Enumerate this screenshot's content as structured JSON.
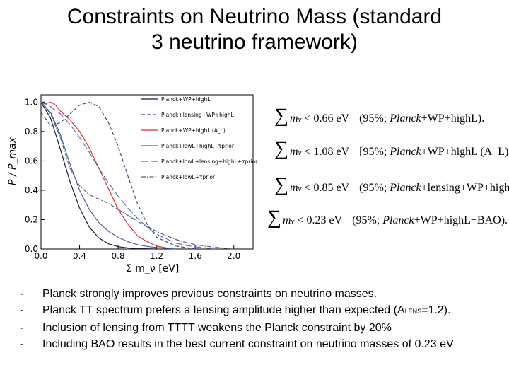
{
  "slide": {
    "title_line1": "Constraints on Neutrino Mass (standard",
    "title_line2": "3 neutrino framework)"
  },
  "chart_data": {
    "type": "line",
    "title": "",
    "xlabel": "Σ m_ν [eV]",
    "ylabel": "P / P_max",
    "xlim": [
      0.0,
      2.2
    ],
    "ylim": [
      0.0,
      1.05
    ],
    "x_ticks": [
      "0.0",
      "0.4",
      "0.8",
      "1.2",
      "1.6",
      "2.0"
    ],
    "y_ticks": [
      "0.0",
      "0.2",
      "0.4",
      "0.6",
      "0.8",
      "1.0"
    ],
    "legend_position": "top-right",
    "series": [
      {
        "name": "Planck+WP+highL",
        "color": "#1a1a3a",
        "dash": "solid",
        "x": [
          0,
          0.1,
          0.2,
          0.3,
          0.4,
          0.5,
          0.6,
          0.7,
          0.8,
          0.9,
          1.0,
          1.2
        ],
        "y": [
          1.0,
          0.89,
          0.68,
          0.46,
          0.28,
          0.15,
          0.075,
          0.035,
          0.016,
          0.007,
          0.003,
          0.0
        ]
      },
      {
        "name": "Planck+lensing+WP+highL",
        "color": "#3a4a7a",
        "dash": "dashed",
        "x": [
          0,
          0.1,
          0.2,
          0.3,
          0.4,
          0.5,
          0.6,
          0.7,
          0.8,
          0.9,
          1.0,
          1.1,
          1.2,
          1.4,
          1.6
        ],
        "y": [
          0.93,
          0.84,
          0.86,
          0.92,
          0.98,
          1.0,
          0.97,
          0.86,
          0.7,
          0.5,
          0.31,
          0.17,
          0.08,
          0.02,
          0.0
        ]
      },
      {
        "name": "Planck+WP+highL (A_L)",
        "color": "#d9342b",
        "dash": "solid",
        "x": [
          0,
          0.05,
          0.1,
          0.15,
          0.2,
          0.3,
          0.4,
          0.5,
          0.6,
          0.7,
          0.8,
          0.9,
          1.0,
          1.1,
          1.2,
          1.3,
          1.4
        ],
        "y": [
          1.0,
          0.99,
          1.0,
          0.98,
          0.94,
          0.88,
          0.8,
          0.69,
          0.55,
          0.41,
          0.27,
          0.17,
          0.09,
          0.05,
          0.02,
          0.008,
          0.0
        ]
      },
      {
        "name": "Planck+lowL+highL+τprior",
        "color": "#4a5fa8",
        "dash": "solid",
        "x": [
          0,
          0.1,
          0.2,
          0.3,
          0.4,
          0.5,
          0.6,
          0.7,
          0.8,
          0.9,
          1.0,
          1.1,
          1.2,
          1.3,
          1.4
        ],
        "y": [
          1.0,
          0.93,
          0.78,
          0.58,
          0.4,
          0.27,
          0.18,
          0.12,
          0.08,
          0.05,
          0.03,
          0.018,
          0.01,
          0.005,
          0.0
        ]
      },
      {
        "name": "Planck+lowL+lensing+highL+τprior",
        "color": "#5a6fb8",
        "dash": "longdash",
        "x": [
          0,
          0.1,
          0.2,
          0.3,
          0.4,
          0.5,
          0.6,
          0.7,
          0.8,
          0.9,
          1.0,
          1.1,
          1.2,
          1.3,
          1.4,
          1.5,
          1.6,
          1.7,
          1.8
        ],
        "y": [
          1.0,
          0.97,
          0.92,
          0.85,
          0.76,
          0.66,
          0.55,
          0.45,
          0.36,
          0.28,
          0.21,
          0.15,
          0.1,
          0.07,
          0.04,
          0.025,
          0.015,
          0.008,
          0.0
        ]
      },
      {
        "name": "Planck+lowL+τprior",
        "color": "#5a5a7a",
        "dash": "dashdot",
        "x": [
          0,
          0.1,
          0.2,
          0.3,
          0.4,
          0.5,
          0.6,
          0.7,
          0.8,
          0.9,
          1.0,
          1.1,
          1.2,
          1.3,
          1.4,
          1.5,
          1.6,
          1.7,
          1.8,
          1.9,
          2.0
        ],
        "y": [
          1.0,
          0.92,
          0.76,
          0.55,
          0.43,
          0.37,
          0.34,
          0.31,
          0.27,
          0.23,
          0.19,
          0.15,
          0.12,
          0.09,
          0.065,
          0.045,
          0.03,
          0.02,
          0.012,
          0.006,
          0.0
        ]
      }
    ]
  },
  "constraints": [
    {
      "var": "m",
      "sub": "ν",
      "rel": "< 0.66 eV",
      "note_pre": "(95%; ",
      "note_italic": "Planck",
      "note_post": "+WP+highL)."
    },
    {
      "var": "m",
      "sub": "ν",
      "rel": "< 1.08 eV",
      "note_pre": "[95%; ",
      "note_italic": "Planck",
      "note_post": "+WP+highL (A_L)],"
    },
    {
      "var": "m",
      "sub": "ν",
      "rel": "< 0.85 eV",
      "note_pre": "(95%; ",
      "note_italic": "Planck",
      "note_post": "+lensing+WP+highL),"
    },
    {
      "var": "m",
      "sub": "ν",
      "rel": "< 0.23 eV",
      "note_pre": "(95%; ",
      "note_italic": "Planck",
      "note_post": "+WP+highL+BAO)."
    }
  ],
  "bullets": {
    "dash": "-",
    "b1": "Planck strongly improves previous constraints on neutrino masses.",
    "b2_pre": "Planck TT spectrum prefers a lensing amplitude higher than expected (A",
    "b2_sub": "LENS",
    "b2_post": "=1.2).",
    "b3": "Inclusion of lensing from TTTT weakens the Planck constraint by 20%",
    "b4": "Including BAO results in the best current constraint on neutrino masses of 0.23 eV"
  },
  "colors": {
    "background": "#ffffff",
    "text": "#000000"
  }
}
